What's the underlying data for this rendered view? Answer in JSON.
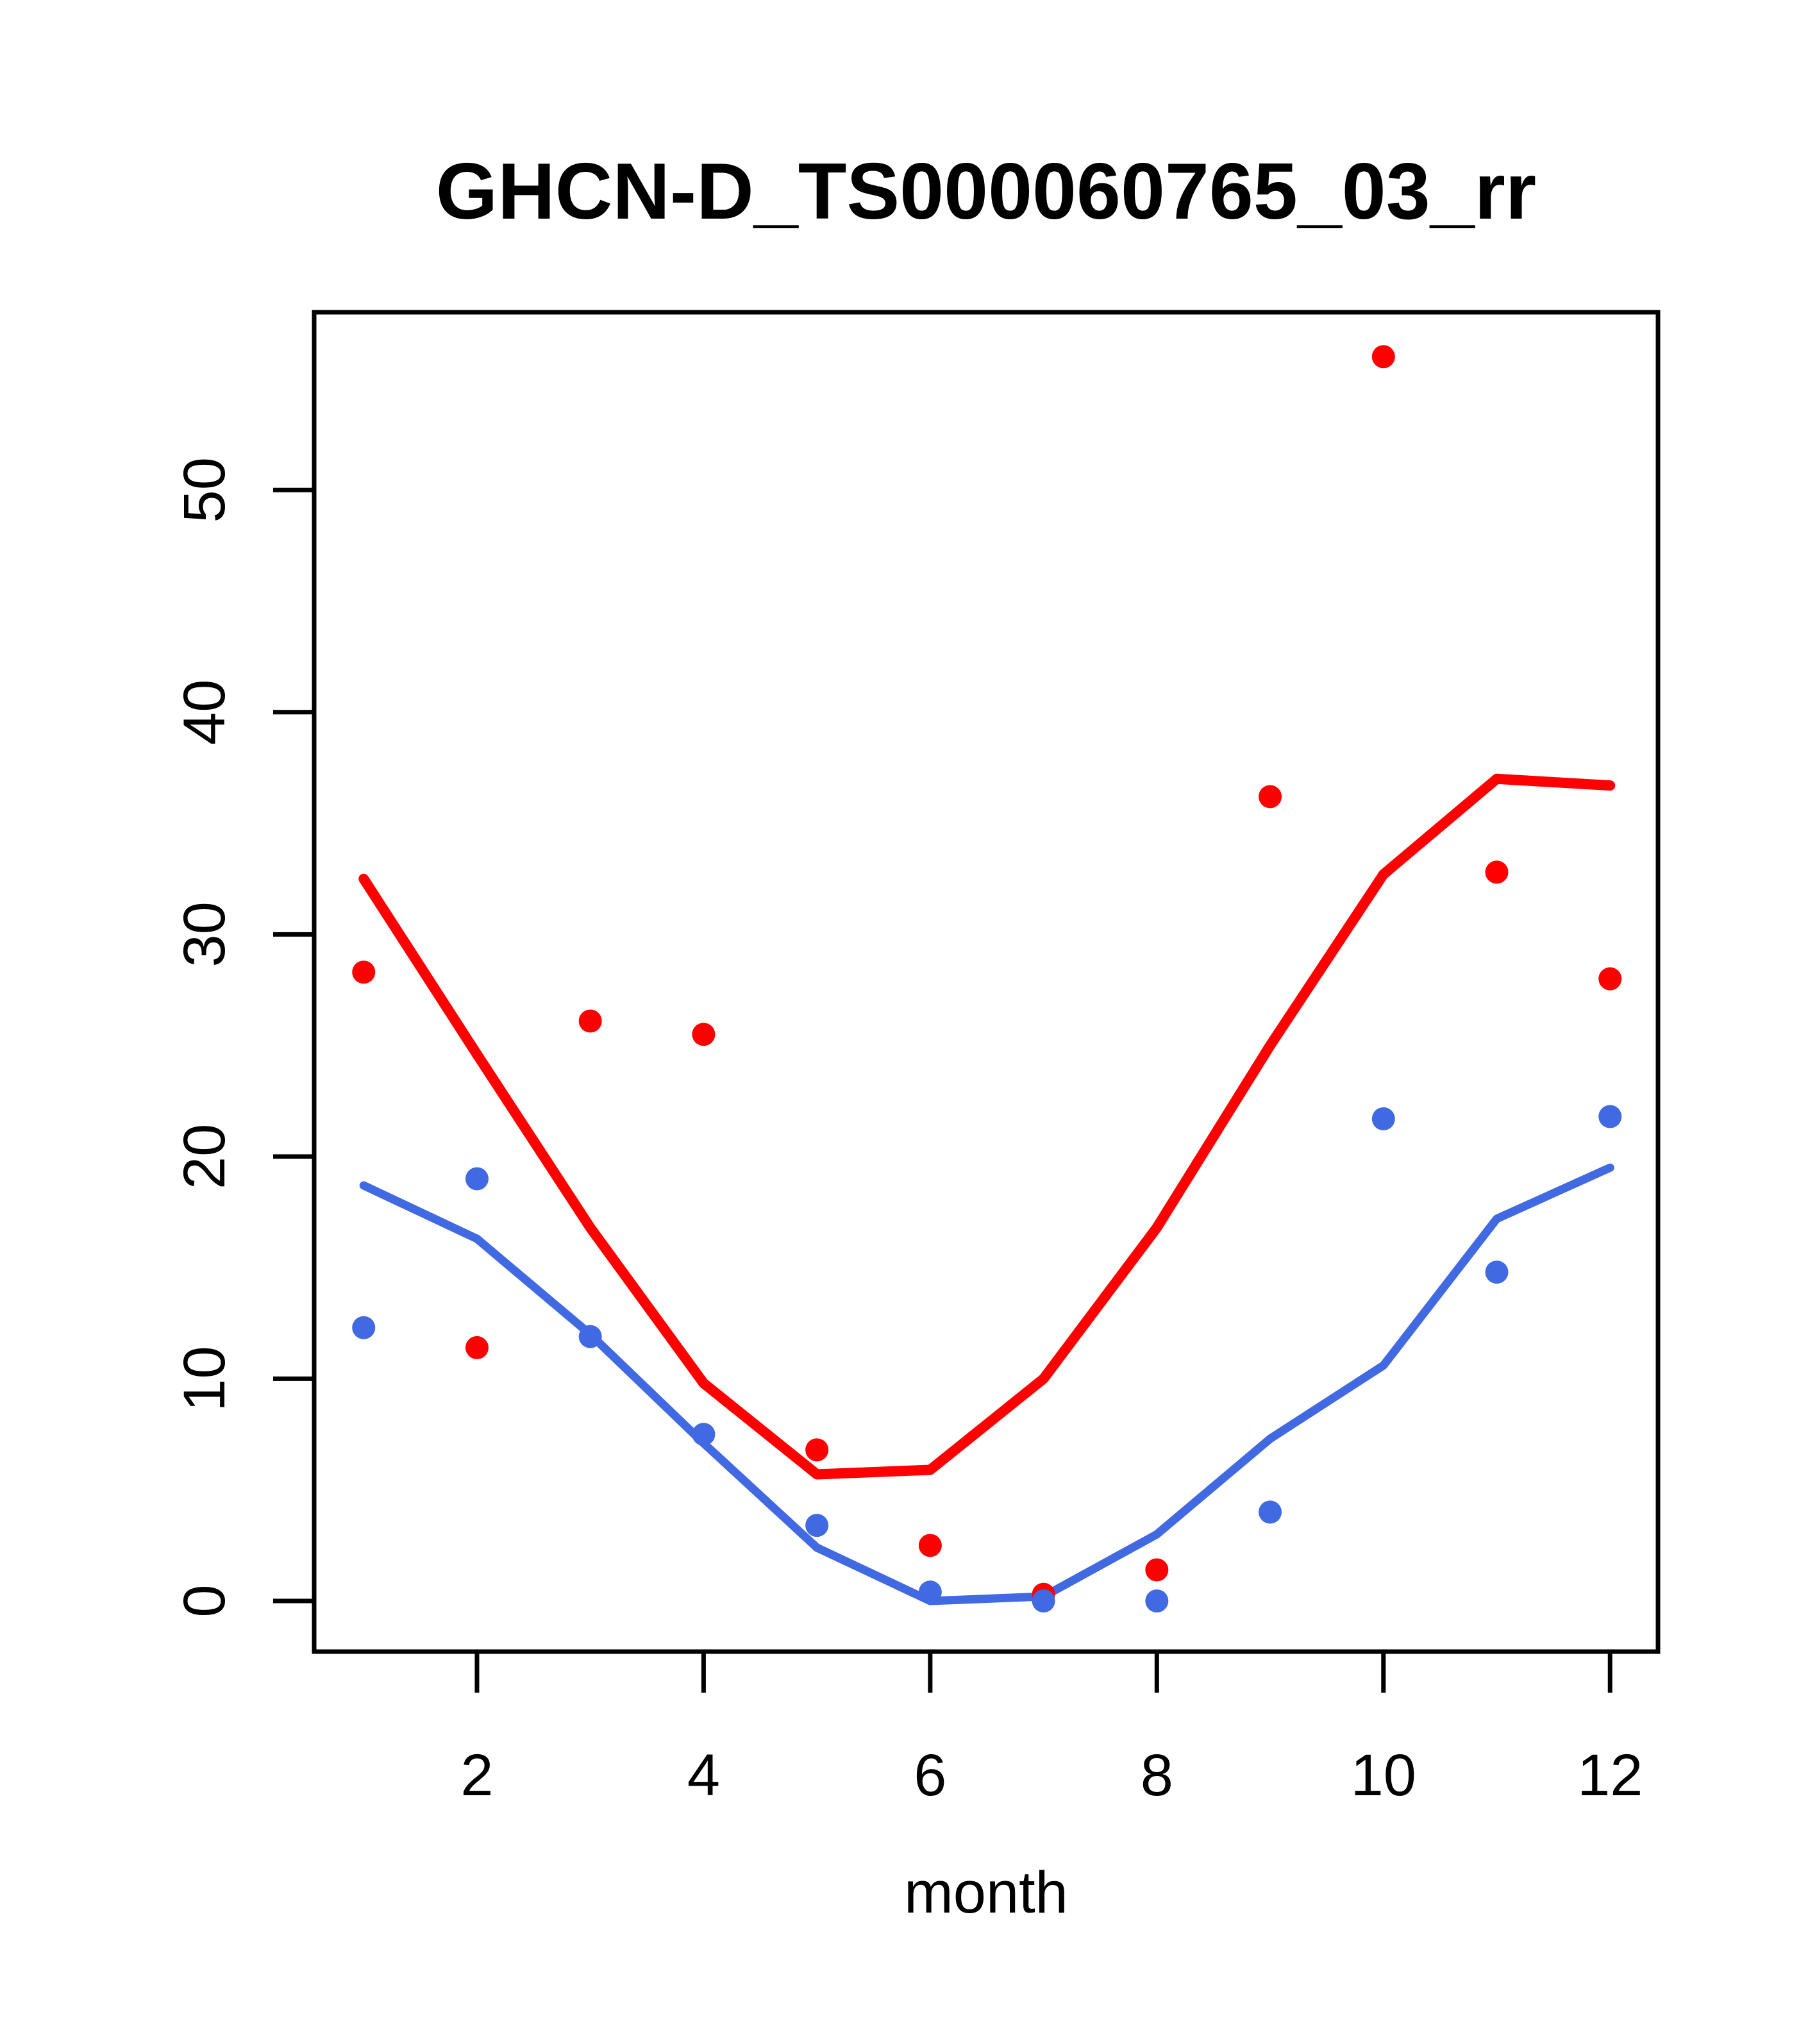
{
  "title": "GHCN-D_TS000060765_03_rr",
  "colors": {
    "red": "#ff0000",
    "blue": "#4169e1",
    "axis": "#000000",
    "background": "#ffffff"
  },
  "chart_data": {
    "type": "scatter",
    "title": "GHCN-D_TS000060765_03_rr",
    "xlabel": "month",
    "ylabel": "",
    "x": [
      1,
      2,
      3,
      4,
      5,
      6,
      7,
      8,
      9,
      10,
      11,
      12
    ],
    "xticks": [
      2,
      4,
      6,
      8,
      10,
      12
    ],
    "yticks": [
      0,
      10,
      20,
      30,
      40,
      50
    ],
    "xlim": [
      0.563,
      12.423
    ],
    "ylim": [
      -2.28,
      58.0
    ],
    "grid": false,
    "legend_position": "none",
    "series": [
      {
        "name": "red-points",
        "kind": "points",
        "color": "#ff0000",
        "values": [
          28.3,
          11.4,
          26.1,
          25.5,
          6.8,
          2.5,
          0.3,
          1.4,
          36.2,
          56.0,
          32.8,
          28.0
        ]
      },
      {
        "name": "blue-points",
        "kind": "points",
        "color": "#4169e1",
        "values": [
          12.3,
          19.0,
          11.9,
          7.5,
          3.4,
          0.4,
          0.0,
          0.0,
          4.0,
          21.7,
          14.8,
          21.8
        ]
      },
      {
        "name": "red-line",
        "kind": "line",
        "color": "#ff0000",
        "values": [
          32.5,
          24.6,
          16.8,
          9.8,
          5.7,
          5.9,
          10.0,
          16.8,
          25.0,
          32.7,
          37.0,
          36.7
        ]
      },
      {
        "name": "blue-line",
        "kind": "line",
        "color": "#4169e1",
        "values": [
          18.7,
          16.3,
          12.0,
          7.1,
          2.4,
          0.0,
          0.2,
          3.0,
          7.3,
          10.6,
          17.2,
          19.5
        ]
      }
    ]
  }
}
